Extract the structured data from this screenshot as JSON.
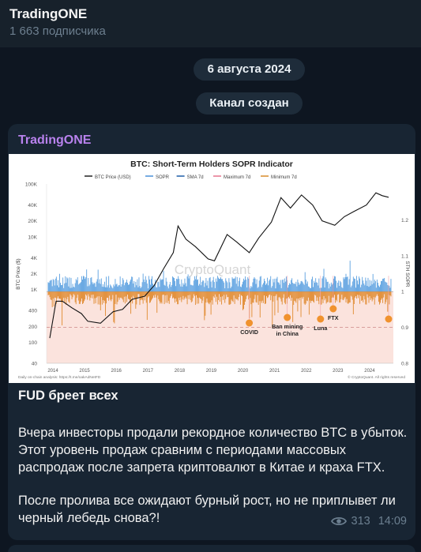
{
  "header": {
    "title": "TradingONE",
    "subtitle": "1 663 подписчика"
  },
  "date_pill": "6 августа 2024",
  "service_pill": "Канал создан",
  "post": {
    "channel_name": "TradingONE",
    "title": "FUD бреет всех",
    "paragraph1": "Вчера инвесторы продали рекордное количество BTC в убыток. Этот уровень продаж сравним с периодами массовых распродаж после запрета криптовалют в Китае и краха FTX.",
    "paragraph2": "После пролива все ожидают бурный рост, но не приплывет ли черный лебедь снова?!",
    "views": "313",
    "time": "14:09"
  },
  "colors": {
    "bg": "#0e1621",
    "header": "#17212b",
    "bubble": "#182533",
    "channel": "#b982ee",
    "meta": "#6c7f90"
  },
  "chart_data": {
    "type": "line",
    "title": "BTC: Short-Term Holders SOPR Indicator",
    "legend": [
      "BTC Price (USD)",
      "SOPR",
      "SMA 7d",
      "Maximum 7d",
      "Minimum 7d"
    ],
    "legend_placement": "top",
    "y_left_label": "BTC Price ($)",
    "y_left_ticks": [
      "100K",
      "40K",
      "20K",
      "10K",
      "4K",
      "2K",
      "1K",
      "400",
      "200",
      "100",
      "40"
    ],
    "y_right_label": "STH SOPR",
    "y_right_ticks": [
      "1.2",
      "1.1",
      "1",
      "0.9",
      "0.8"
    ],
    "x_ticks": [
      "2014",
      "2015",
      "2016",
      "2017",
      "2018",
      "2019",
      "2020",
      "2021",
      "2022",
      "2023",
      "2024"
    ],
    "watermark": "CryptoQuant",
    "footer_left": "Daily on-chain analysis: https://t.me/oakAdNetFD",
    "footer_right": "© CryptoQuant. All rights reserved",
    "annotations": [
      {
        "label": "COVID",
        "x": 2020.2
      },
      {
        "label": "Ban mining in China",
        "x": 2021.4
      },
      {
        "label": "Luna",
        "x": 2022.45
      },
      {
        "label": "FTX",
        "x": 2022.85
      },
      {
        "label": "",
        "x": 2024.6
      }
    ],
    "btc_price": {
      "x": [
        2013.9,
        2014.1,
        2014.3,
        2014.6,
        2014.9,
        2015.1,
        2015.5,
        2015.9,
        2016.2,
        2016.5,
        2016.9,
        2017.2,
        2017.5,
        2017.8,
        2017.95,
        2018.2,
        2018.5,
        2018.9,
        2019.1,
        2019.5,
        2019.8,
        2020.2,
        2020.5,
        2020.9,
        2021.2,
        2021.5,
        2021.85,
        2022.2,
        2022.5,
        2022.9,
        2023.2,
        2023.5,
        2023.9,
        2024.2,
        2024.4,
        2024.6
      ],
      "y": [
        120,
        600,
        600,
        450,
        350,
        250,
        230,
        380,
        420,
        650,
        750,
        1200,
        2500,
        5000,
        16000,
        9000,
        6500,
        3800,
        3500,
        11000,
        8000,
        5000,
        9500,
        19000,
        55000,
        35000,
        62000,
        40000,
        20000,
        16500,
        24000,
        30000,
        40000,
        68000,
        60000,
        56000
      ]
    }
  }
}
